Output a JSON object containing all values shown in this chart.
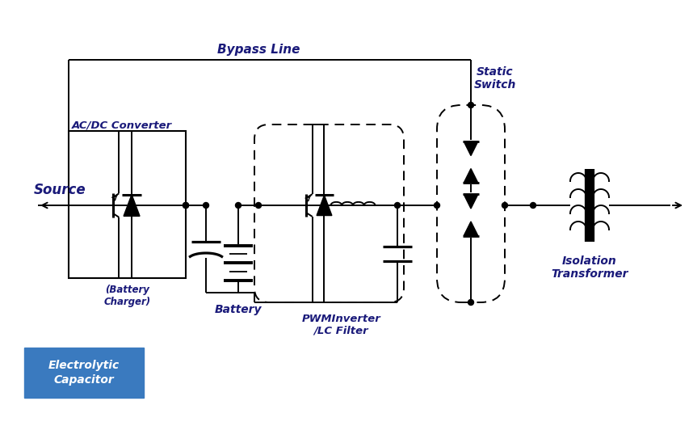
{
  "bg_color": "#ffffff",
  "line_color": "#000000",
  "text_color": "#1a1a7a",
  "bypass_label": "Bypass Line",
  "source_label": "Source",
  "acdc_label": "AC/DC Converter",
  "battery_charger_label": "(Battery\nCharger)",
  "battery_label": "Battery",
  "pwm_label": "PWMInverter\n/LC Filter",
  "static_switch_label": "Static\nSwitch",
  "isolation_label": "Isolation\nTransformer",
  "electrolytic_label": "Electrolytic\nCapacitor",
  "elec_box_color": "#3a7abf",
  "elec_text_color": "#ffffff",
  "figw": 8.58,
  "figh": 5.22,
  "dpi": 100
}
